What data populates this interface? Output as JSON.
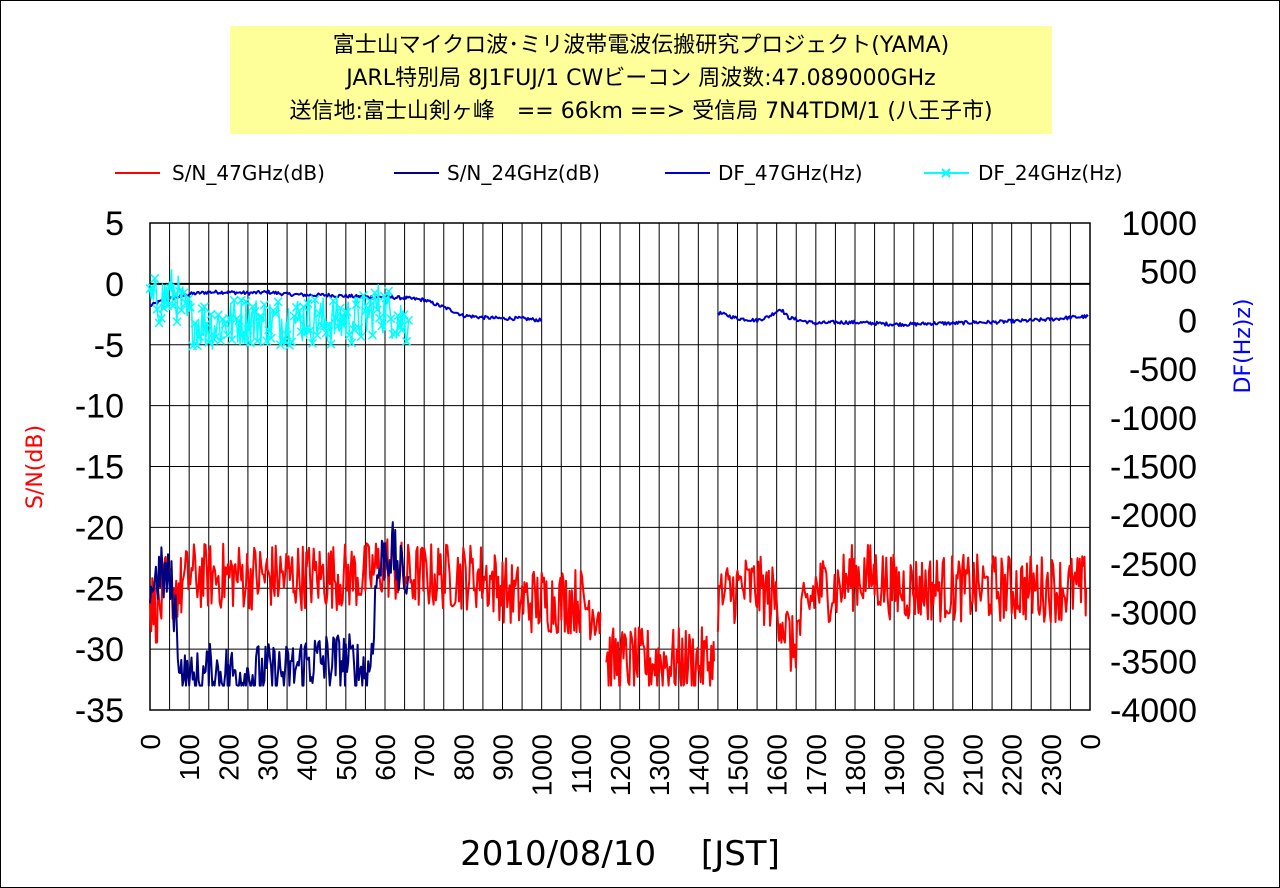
{
  "colors": {
    "sn47": "#ff0000",
    "sn24": "#000080",
    "df47": "#0000cc",
    "df24": "#00ffff",
    "title_bg": "#ffff99",
    "left_axis_title": "#ff0000",
    "right_axis_title": "#0000ff"
  },
  "chart_data": {
    "type": "line",
    "title": [
      "富士山マイクロ波･ミリ波帯電波伝搬研究プロジェクト(YAMA)",
      "JARL特別局 8J1FUJ/1 CWビーコン 周波数:47.089000GHz",
      "送信地:富士山剣ヶ峰　== 66km ==> 受信局 7N4TDM/1 (八王子市)"
    ],
    "xlabel": "2010/08/10　 [JST]",
    "ylabel": "S/N(dB)",
    "y2label": "DF(Hz)z)",
    "ylim": [
      -35,
      5
    ],
    "y2lim": [
      -4000,
      1000
    ],
    "xlim": [
      0,
      2400
    ],
    "y_ticks": [
      "5",
      "0",
      "-5",
      "-10",
      "-15",
      "-20",
      "-25",
      "-30",
      "-35"
    ],
    "y2_ticks": [
      "1000",
      "500",
      "0",
      "-500",
      "-1000",
      "-1500",
      "-2000",
      "-2500",
      "-3000",
      "-3500",
      "-4000"
    ],
    "x_ticks": [
      "0",
      "100",
      "200",
      "300",
      "400",
      "500",
      "600",
      "700",
      "800",
      "900",
      "1000",
      "1100",
      "1200",
      "1300",
      "1400",
      "1500",
      "1600",
      "1700",
      "1800",
      "1900",
      "2000",
      "2100",
      "2200",
      "2300",
      "0"
    ],
    "grid": true,
    "legend_position": "top",
    "series": [
      {
        "name": "S/N_47GHz(dB)",
        "axis": "left",
        "style": "line",
        "noise": 2.8,
        "segments": [
          [
            [
              0,
              -26
            ],
            [
              20,
              -27
            ],
            [
              40,
              -25
            ],
            [
              80,
              -25
            ],
            [
              100,
              -24
            ],
            [
              200,
              -24
            ],
            [
              300,
              -24
            ],
            [
              400,
              -24
            ],
            [
              450,
              -24
            ],
            [
              500,
              -24
            ],
            [
              550,
              -24
            ],
            [
              600,
              -23
            ],
            [
              650,
              -24
            ],
            [
              700,
              -24
            ],
            [
              750,
              -24
            ],
            [
              800,
              -24
            ],
            [
              850,
              -24
            ],
            [
              900,
              -25
            ],
            [
              950,
              -26
            ],
            [
              1000,
              -26
            ],
            [
              1050,
              -26
            ],
            [
              1100,
              -26
            ],
            [
              1150,
              -27
            ]
          ],
          [
            [
              1165,
              -31
            ],
            [
              1200,
              -31
            ],
            [
              1250,
              -31
            ],
            [
              1300,
              -31
            ],
            [
              1350,
              -31
            ],
            [
              1400,
              -31
            ],
            [
              1440,
              -31
            ]
          ],
          [
            [
              1450,
              -26
            ],
            [
              1500,
              -25
            ],
            [
              1550,
              -25
            ],
            [
              1600,
              -26
            ],
            [
              1640,
              -30
            ],
            [
              1660,
              -28
            ],
            [
              1700,
              -25
            ],
            [
              1750,
              -25
            ],
            [
              1800,
              -24
            ],
            [
              1850,
              -24
            ],
            [
              1900,
              -25
            ],
            [
              1950,
              -25
            ],
            [
              2000,
              -25
            ],
            [
              2050,
              -25
            ],
            [
              2100,
              -25
            ],
            [
              2150,
              -25
            ],
            [
              2200,
              -25
            ],
            [
              2250,
              -25
            ],
            [
              2300,
              -25
            ],
            [
              2350,
              -25
            ],
            [
              2390,
              -25
            ]
          ]
        ]
      },
      {
        "name": "S/N_24GHz(dB)",
        "axis": "left",
        "style": "line",
        "noise": 2.5,
        "segments": [
          [
            [
              0,
              -25
            ],
            [
              20,
              -24
            ],
            [
              40,
              -24
            ],
            [
              55,
              -25
            ],
            [
              65,
              -27
            ],
            [
              80,
              -32
            ],
            [
              100,
              -33
            ],
            [
              150,
              -32
            ],
            [
              200,
              -32
            ],
            [
              250,
              -32
            ],
            [
              300,
              -32
            ],
            [
              350,
              -32
            ],
            [
              400,
              -31
            ],
            [
              450,
              -31
            ],
            [
              500,
              -31
            ],
            [
              560,
              -32
            ],
            [
              580,
              -24
            ],
            [
              600,
              -22
            ],
            [
              620,
              -22
            ],
            [
              640,
              -24
            ],
            [
              660,
              -24
            ]
          ]
        ]
      },
      {
        "name": "DF_47GHz(Hz)",
        "axis": "right",
        "style": "line",
        "noise": 18,
        "segments": [
          [
            [
              0,
              150
            ],
            [
              30,
              200
            ],
            [
              60,
              230
            ],
            [
              100,
              270
            ],
            [
              150,
              290
            ],
            [
              200,
              290
            ],
            [
              250,
              280
            ],
            [
              300,
              290
            ],
            [
              350,
              270
            ],
            [
              400,
              260
            ],
            [
              450,
              260
            ],
            [
              500,
              250
            ],
            [
              550,
              240
            ],
            [
              600,
              240
            ],
            [
              650,
              230
            ],
            [
              700,
              210
            ],
            [
              760,
              120
            ],
            [
              800,
              50
            ],
            [
              850,
              30
            ],
            [
              900,
              20
            ],
            [
              950,
              20
            ],
            [
              1000,
              0
            ]
          ],
          [
            [
              1450,
              80
            ],
            [
              1500,
              20
            ],
            [
              1550,
              0
            ],
            [
              1580,
              40
            ],
            [
              1610,
              120
            ],
            [
              1630,
              30
            ],
            [
              1660,
              0
            ],
            [
              1700,
              -30
            ],
            [
              1750,
              -20
            ],
            [
              1800,
              -20
            ],
            [
              1850,
              -30
            ],
            [
              1900,
              -40
            ],
            [
              1950,
              -40
            ],
            [
              2000,
              -30
            ],
            [
              2050,
              -30
            ],
            [
              2100,
              -20
            ],
            [
              2150,
              -20
            ],
            [
              2200,
              -10
            ],
            [
              2250,
              0
            ],
            [
              2300,
              10
            ],
            [
              2350,
              30
            ],
            [
              2395,
              40
            ]
          ]
        ]
      },
      {
        "name": "DF_24GHz(Hz)",
        "axis": "right",
        "style": "line-x-markers",
        "noise": 260,
        "segments": [
          [
            [
              0,
              200
            ],
            [
              20,
              180
            ],
            [
              40,
              250
            ],
            [
              60,
              300
            ],
            [
              80,
              150
            ],
            [
              100,
              0
            ],
            [
              150,
              -50
            ],
            [
              200,
              -30
            ],
            [
              250,
              0
            ],
            [
              300,
              -20
            ],
            [
              350,
              0
            ],
            [
              400,
              20
            ],
            [
              450,
              -10
            ],
            [
              500,
              0
            ],
            [
              550,
              20
            ],
            [
              580,
              150
            ],
            [
              600,
              100
            ],
            [
              640,
              20
            ],
            [
              660,
              0
            ]
          ]
        ]
      }
    ]
  }
}
